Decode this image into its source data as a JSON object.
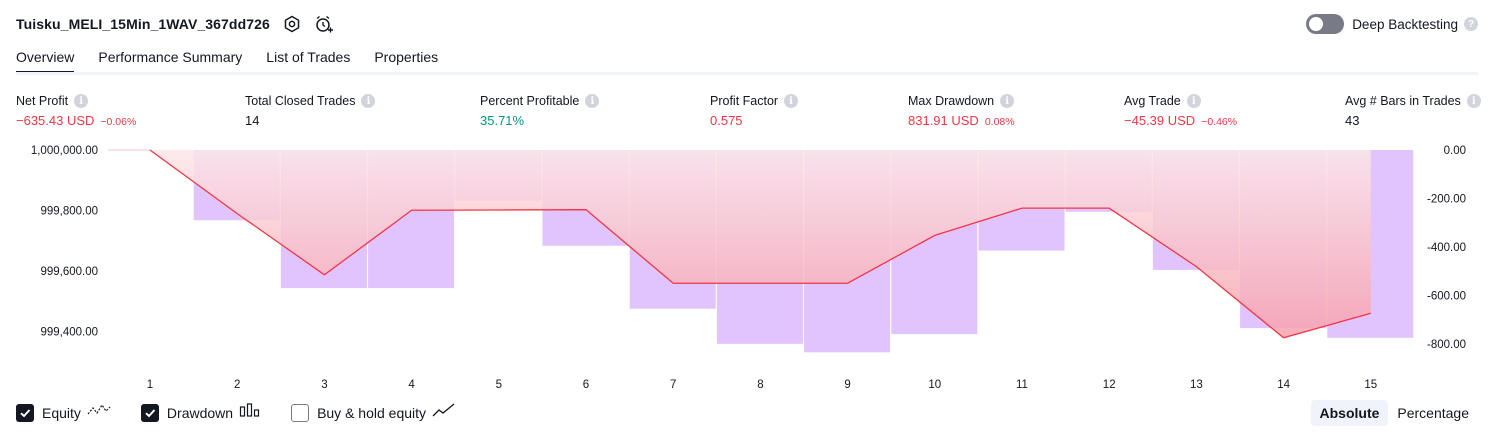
{
  "header": {
    "strategy_name": "Tuisku_MELI_15Min_1WAV_367dd726",
    "icons": [
      "settings-icon",
      "alarm-add-icon"
    ],
    "deep_backtesting_label": "Deep Backtesting",
    "deep_backtesting_enabled": false,
    "help_glyph": "?"
  },
  "tabs": [
    {
      "label": "Overview",
      "active": true
    },
    {
      "label": "Performance Summary",
      "active": false
    },
    {
      "label": "List of Trades",
      "active": false
    },
    {
      "label": "Properties",
      "active": false
    }
  ],
  "metrics": [
    {
      "label": "Net Profit",
      "value": "−635.43 USD",
      "pct": "−0.06%",
      "tone": "neg"
    },
    {
      "label": "Total Closed Trades",
      "value": "14",
      "pct": "",
      "tone": "neutral"
    },
    {
      "label": "Percent Profitable",
      "value": "35.71%",
      "pct": "",
      "tone": "pos"
    },
    {
      "label": "Profit Factor",
      "value": "0.575",
      "pct": "",
      "tone": "neg"
    },
    {
      "label": "Max Drawdown",
      "value": "831.91 USD",
      "pct": "0.08%",
      "tone": "neg"
    },
    {
      "label": "Avg Trade",
      "value": "−45.39 USD",
      "pct": "−0.46%",
      "tone": "neg"
    },
    {
      "label": "Avg # Bars in Trades",
      "value": "43",
      "pct": "",
      "tone": "neutral"
    }
  ],
  "info_glyph": "i",
  "chart_data": {
    "type": "line",
    "x": [
      1,
      2,
      3,
      4,
      5,
      6,
      7,
      8,
      9,
      10,
      11,
      12,
      13,
      14,
      15
    ],
    "left_axis": {
      "ticks": [
        "1,000,000.00",
        "999,800.00",
        "999,600.00",
        "999,400.00"
      ],
      "values": [
        1000000,
        999800,
        999600,
        999400
      ],
      "range": [
        999300,
        1000000
      ]
    },
    "right_axis": {
      "ticks": [
        "0.00",
        "-200.00",
        "-400.00",
        "-600.00",
        "-800.00"
      ],
      "values": [
        0,
        -200,
        -400,
        -600,
        -800
      ],
      "range": [
        -875,
        0
      ]
    },
    "series": [
      {
        "name": "Equity",
        "values": [
          1000000,
          999790,
          999588,
          999801,
          999802,
          999803,
          999560,
          999560,
          999560,
          999718,
          999808,
          999808,
          999615,
          999380,
          999461
        ]
      },
      {
        "name": "Drawdown",
        "values": [
          0,
          -290,
          -570,
          -570,
          -210,
          -395,
          -655,
          -800,
          -835,
          -760,
          -415,
          -255,
          -495,
          -735,
          -775
        ]
      }
    ],
    "colors": {
      "equity_line": "#f23645",
      "drawdown_bar": "#e1c3fd",
      "equity_fill_top": "#fde7e9",
      "equity_fill_bottom": "#f7a1ad"
    }
  },
  "legend": [
    {
      "label": "Equity",
      "checked": true,
      "icon": "equity-line-icon"
    },
    {
      "label": "Drawdown",
      "checked": true,
      "icon": "drawdown-bars-icon"
    },
    {
      "label": "Buy & hold equity",
      "checked": false,
      "icon": "buy-hold-line-icon"
    }
  ],
  "modes": [
    {
      "label": "Absolute",
      "active": true
    },
    {
      "label": "Percentage",
      "active": false
    }
  ]
}
